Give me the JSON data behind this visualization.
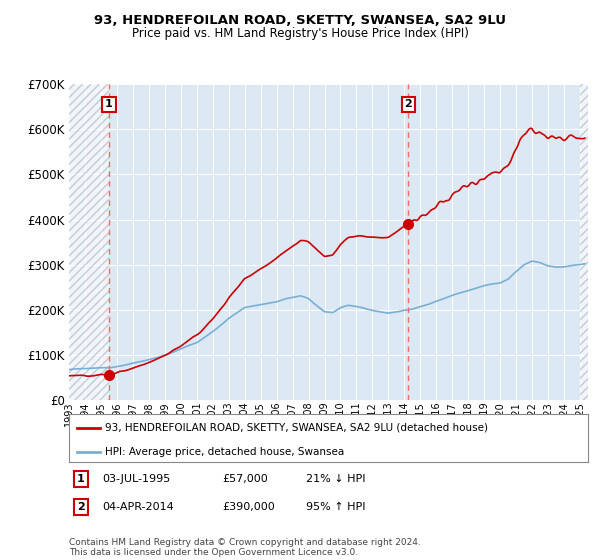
{
  "title1": "93, HENDREFOILAN ROAD, SKETTY, SWANSEA, SA2 9LU",
  "title2": "Price paid vs. HM Land Registry's House Price Index (HPI)",
  "legend_line1": "93, HENDREFOILAN ROAD, SKETTY, SWANSEA, SA2 9LU (detached house)",
  "legend_line2": "HPI: Average price, detached house, Swansea",
  "sale1_label": "1",
  "sale1_date": "03-JUL-1995",
  "sale1_price": "£57,000",
  "sale1_hpi": "21% ↓ HPI",
  "sale2_label": "2",
  "sale2_date": "04-APR-2014",
  "sale2_price": "£390,000",
  "sale2_hpi": "95% ↑ HPI",
  "footnote": "Contains HM Land Registry data © Crown copyright and database right 2024.\nThis data is licensed under the Open Government Licence v3.0.",
  "ylim": [
    0,
    700000
  ],
  "yticks": [
    0,
    100000,
    200000,
    300000,
    400000,
    500000,
    600000,
    700000
  ],
  "ytick_labels": [
    "£0",
    "£100K",
    "£200K",
    "£300K",
    "£400K",
    "£500K",
    "£600K",
    "£700K"
  ],
  "background_color": "#dce9f5",
  "hatch_bg": "#c8d8e8",
  "red_color": "#cc0000",
  "blue_color": "#7aafd4",
  "sale1_x": 1995.5,
  "sale1_y": 57000,
  "sale2_x": 2014.25,
  "sale2_y": 390000,
  "xmin": 1993.0,
  "xmax": 2025.5,
  "hatch_right_x": 2025.0
}
